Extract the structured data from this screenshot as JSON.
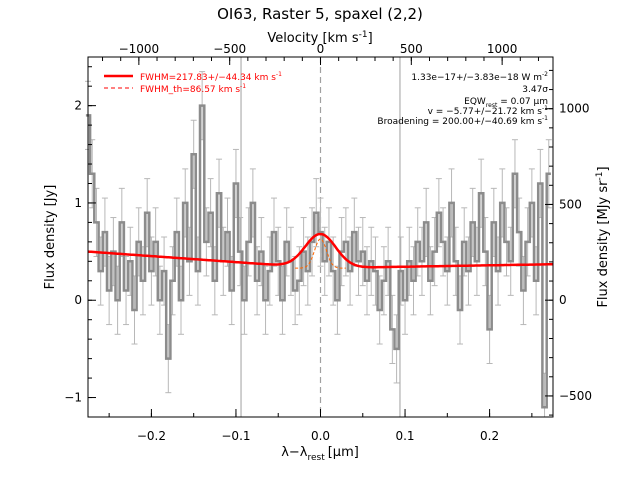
{
  "chart_data": {
    "type": "line",
    "title": "OI63, Raster 5, spaxel (2,2)",
    "xlabel": "λ−λ",
    "xlabel_sub": "rest",
    "xlabel_unit": "[μm]",
    "ylabel": "Flux density [Jy]",
    "top_xlabel": "Velocity [km s",
    "top_xlabel_sup": "-1",
    "top_xlabel_end": "]",
    "right_ylabel": "Flux density [MJy sr",
    "right_ylabel_sup": "-1",
    "right_ylabel_end": "]",
    "xlim": [
      -0.275,
      0.275
    ],
    "ylim": [
      -1.2,
      2.5
    ],
    "top_xlim": [
      -1280,
      1280
    ],
    "right_ylim": [
      -610,
      1270
    ],
    "x_ticks": [
      -0.2,
      -0.1,
      0.0,
      0.1,
      0.2
    ],
    "x_tick_labels": [
      "−0.2",
      "−0.1",
      "0.0",
      "0.1",
      "0.2"
    ],
    "y_ticks": [
      -1,
      0,
      1,
      2
    ],
    "y_tick_labels": [
      "−1",
      "0",
      "1",
      "2"
    ],
    "top_ticks": [
      -1000,
      -500,
      0,
      500,
      1000
    ],
    "top_tick_labels": [
      "−1000",
      "−500",
      "0",
      "500",
      "1000"
    ],
    "right_ticks": [
      -500,
      0,
      500,
      1000
    ],
    "right_tick_labels": [
      "−500",
      "0",
      "500",
      "1000"
    ],
    "vlines": [
      -0.094,
      0.0,
      0.094
    ],
    "legend": [
      {
        "label": "FWHM=217.83+/−44.34 km s",
        "sup": "-1",
        "style": "solid"
      },
      {
        "label": "FWHM_th=86.57 km s",
        "sup": "-1",
        "style": "dashed"
      }
    ],
    "annotations": [
      {
        "text": "1.33e−17+/−3.83e−18 W m",
        "sup": "-2"
      },
      {
        "text": "3.47σ"
      },
      {
        "text": "EQW",
        "sub": "rest",
        "tail": " = 0.07 μm"
      },
      {
        "text": "v = −5.77+/−21.72 km s",
        "sup": "-1"
      },
      {
        "text": "Broadening = 200.00+/−40.69 km s",
        "sup": "-1"
      }
    ],
    "colors": {
      "data": "#8c8c8c",
      "fit": "#ff0000",
      "thermal": "#ff6600",
      "vline": "#a0a0a0"
    },
    "series": [
      {
        "kind": "step",
        "x": [
          -0.275,
          -0.27,
          -0.265,
          -0.26,
          -0.255,
          -0.25,
          -0.245,
          -0.24,
          -0.235,
          -0.23,
          -0.225,
          -0.22,
          -0.215,
          -0.21,
          -0.205,
          -0.2,
          -0.195,
          -0.19,
          -0.185,
          -0.18,
          -0.175,
          -0.17,
          -0.165,
          -0.16,
          -0.155,
          -0.15,
          -0.145,
          -0.14,
          -0.135,
          -0.13,
          -0.125,
          -0.12,
          -0.115,
          -0.11,
          -0.105,
          -0.1,
          -0.095,
          -0.09,
          -0.085,
          -0.08,
          -0.075,
          -0.07,
          -0.065,
          -0.06,
          -0.055,
          -0.05,
          -0.045,
          -0.04,
          -0.035,
          -0.03,
          -0.025,
          -0.02,
          -0.015,
          -0.01,
          -0.005,
          0.0,
          0.005,
          0.01,
          0.015,
          0.02,
          0.025,
          0.03,
          0.035,
          0.04,
          0.045,
          0.05,
          0.055,
          0.06,
          0.065,
          0.07,
          0.075,
          0.08,
          0.085,
          0.09,
          0.095,
          0.1,
          0.105,
          0.11,
          0.115,
          0.12,
          0.125,
          0.13,
          0.135,
          0.14,
          0.145,
          0.15,
          0.155,
          0.16,
          0.165,
          0.17,
          0.175,
          0.18,
          0.185,
          0.19,
          0.195,
          0.2,
          0.205,
          0.21,
          0.215,
          0.22,
          0.225,
          0.23,
          0.235,
          0.24,
          0.245,
          0.25,
          0.255,
          0.26,
          0.265,
          0.27
        ],
        "y": [
          1.9,
          1.3,
          0.8,
          0.3,
          0.7,
          0.1,
          0.5,
          0.0,
          0.8,
          0.1,
          0.4,
          -0.1,
          0.6,
          0.2,
          0.9,
          0.3,
          0.6,
          0.0,
          0.3,
          -0.6,
          0.2,
          0.7,
          0.0,
          1.0,
          0.4,
          1.5,
          0.3,
          2.0,
          0.6,
          0.9,
          0.2,
          1.1,
          0.4,
          0.7,
          0.1,
          1.2,
          0.5,
          0.0,
          0.6,
          1.0,
          0.2,
          0.5,
          0.0,
          0.3,
          0.7,
          0.4,
          0.0,
          0.6,
          0.4,
          0.1,
          0.2,
          0.5,
          0.3,
          0.6,
          0.9,
          0.7,
          0.4,
          0.6,
          0.3,
          0.0,
          0.5,
          0.6,
          0.3,
          0.7,
          0.4,
          0.5,
          0.2,
          0.4,
          0.3,
          -0.1,
          0.2,
          0.4,
          -0.3,
          -0.5,
          0.3,
          0.0,
          0.4,
          0.2,
          0.6,
          0.4,
          0.8,
          0.2,
          0.5,
          0.9,
          0.6,
          0.3,
          1.0,
          0.4,
          -0.1,
          0.6,
          0.3,
          0.8,
          0.4,
          1.1,
          0.5,
          -0.3,
          0.8,
          0.3,
          1.0,
          0.6,
          0.4,
          1.3,
          0.7,
          0.1,
          0.6,
          1.0,
          0.2,
          1.2,
          -1.1,
          1.3
        ],
        "yerr": 0.35
      },
      {
        "kind": "fit",
        "baseline_left": 0.5,
        "baseline_mid": 0.33,
        "baseline_right": 0.37,
        "peak": 0.35,
        "center": 0.0,
        "sigma": 0.018
      },
      {
        "kind": "thermal",
        "baseline": 0.33,
        "peak": 0.3,
        "center": 0.0,
        "sigma": 0.007
      }
    ]
  }
}
